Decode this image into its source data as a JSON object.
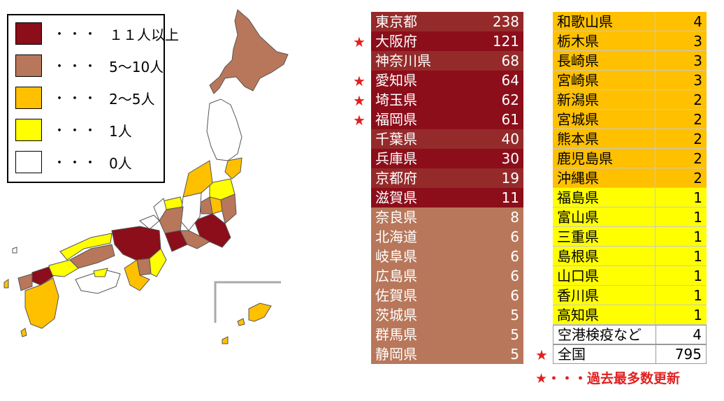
{
  "colors": {
    "cat_11plus": "#8b0e1a",
    "cat_5to10": "#b8775a",
    "cat_2to5": "#ffc000",
    "cat_1": "#ffff00",
    "cat_0": "#ffffff",
    "star": "#e02020"
  },
  "legend": {
    "items": [
      {
        "dots": "・・・",
        "label": "１１人以上",
        "color": "#8b0e1a"
      },
      {
        "dots": "・・・",
        "label": "5～10人",
        "color": "#b8775a"
      },
      {
        "dots": "・・・",
        "label": "2～5人",
        "color": "#ffc000"
      },
      {
        "dots": "・・・",
        "label": "1人",
        "color": "#ffff00"
      },
      {
        "dots": "・・・",
        "label": "0人",
        "color": "#ffffff"
      }
    ]
  },
  "chart_data": {
    "type": "table",
    "left_table": [
      {
        "name": "東京都",
        "value": 238,
        "star": false
      },
      {
        "name": "大阪府",
        "value": 121,
        "star": true
      },
      {
        "name": "神奈川県",
        "value": 68,
        "star": false
      },
      {
        "name": "愛知県",
        "value": 64,
        "star": true
      },
      {
        "name": "埼玉県",
        "value": 62,
        "star": true
      },
      {
        "name": "福岡県",
        "value": 61,
        "star": true
      },
      {
        "name": "千葉県",
        "value": 40,
        "star": false
      },
      {
        "name": "兵庫県",
        "value": 30,
        "star": false
      },
      {
        "name": "京都府",
        "value": 19,
        "star": false
      },
      {
        "name": "滋賀県",
        "value": 11,
        "star": false
      },
      {
        "name": "奈良県",
        "value": 8,
        "star": false
      },
      {
        "name": "北海道",
        "value": 6,
        "star": false
      },
      {
        "name": "岐阜県",
        "value": 6,
        "star": false
      },
      {
        "name": "広島県",
        "value": 6,
        "star": false
      },
      {
        "name": "佐賀県",
        "value": 6,
        "star": false
      },
      {
        "name": "茨城県",
        "value": 5,
        "star": false
      },
      {
        "name": "群馬県",
        "value": 5,
        "star": false
      },
      {
        "name": "静岡県",
        "value": 5,
        "star": false
      }
    ],
    "right_table": [
      {
        "name": "和歌山県",
        "value": 4,
        "star": false
      },
      {
        "name": "栃木県",
        "value": 3,
        "star": false
      },
      {
        "name": "長崎県",
        "value": 3,
        "star": false
      },
      {
        "name": "宮崎県",
        "value": 3,
        "star": false
      },
      {
        "name": "新潟県",
        "value": 2,
        "star": false
      },
      {
        "name": "宮城県",
        "value": 2,
        "star": false
      },
      {
        "name": "熊本県",
        "value": 2,
        "star": false
      },
      {
        "name": "鹿児島県",
        "value": 2,
        "star": false
      },
      {
        "name": "沖縄県",
        "value": 2,
        "star": false
      },
      {
        "name": "福島県",
        "value": 1,
        "star": false
      },
      {
        "name": "富山県",
        "value": 1,
        "star": false
      },
      {
        "name": "三重県",
        "value": 1,
        "star": false
      },
      {
        "name": "島根県",
        "value": 1,
        "star": false
      },
      {
        "name": "山口県",
        "value": 1,
        "star": false
      },
      {
        "name": "香川県",
        "value": 1,
        "star": false
      },
      {
        "name": "高知県",
        "value": 1,
        "star": false
      },
      {
        "name": "空港検疫など",
        "value": 4,
        "star": false
      },
      {
        "name": "全国",
        "value": 795,
        "star": true
      }
    ]
  },
  "footnote": "★・・・過去最多数更新",
  "star_glyph": "★"
}
